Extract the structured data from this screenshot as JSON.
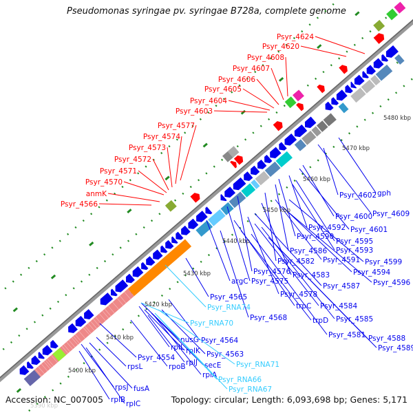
{
  "title": "Pseudomonas syringae pv. syringae B728a, complete genome",
  "footer": {
    "accession": "Accession: NC_007005",
    "summary": "Topology: circular; Length: 6,093,698 bp; Genes: 5,171"
  },
  "colors": {
    "forward": "#ff0000",
    "reverse": "#0000ee",
    "rna": "#33ccff",
    "backbone": "#888888",
    "tick": "#228b22"
  },
  "kbp_ticks": [
    "5480 kbp",
    "5470 kbp",
    "5460 kbp",
    "5450 kbp",
    "5440 kbp",
    "5430 kbp",
    "5420 kbp",
    "5410 kbp",
    "5400 kbp",
    "5390 kbp"
  ],
  "forward_labels": [
    "Psyr_4624",
    "Psyr_4620",
    "Psyr_4608",
    "Psyr_4607",
    "Psyr_4606",
    "Psyr_4605",
    "Psyr_4604",
    "Psyr_4603",
    "Psyr_4577",
    "Psyr_4574",
    "Psyr_4573",
    "Psyr_4572",
    "Psyr_4571",
    "Psyr_4570",
    "anmK",
    "Psyr_4566"
  ],
  "reverse_labels": [
    "gph",
    "Psyr_4602",
    "Psyr_4609",
    "Psyr_4600",
    "Psyr_4601",
    "Psyr_4592",
    "Psyr_4590",
    "Psyr_4595",
    "Psyr_4593",
    "Psyr_4586",
    "Psyr_4599",
    "Psyr_4591",
    "Psyr_4582",
    "Psyr_4594",
    "Psyr_4576",
    "Psyr_4583",
    "Psyr_4596",
    "argC",
    "Psyr_4575",
    "Psyr_4587",
    "Psyr_4578",
    "Psyr_4565",
    "trpC",
    "Psyr_4584",
    "Psyr_4568",
    "Psyr_4585",
    "trpD",
    "Psyr_4581",
    "Psyr_4588",
    "Psyr_4564",
    "Psyr_4589",
    "nusG",
    "Psyr_4563",
    "rplL",
    "rplK",
    "Psyr_4554",
    "rpsL",
    "rpoB",
    "rplJ",
    "secE",
    "rplA",
    "rpsJ",
    "fusA",
    "rplB",
    "rplC"
  ],
  "rna_labels": [
    "Psyr_RNA74",
    "Psyr_RNA70",
    "Psyr_RNA71",
    "Psyr_RNA66",
    "Psyr_RNA67"
  ]
}
